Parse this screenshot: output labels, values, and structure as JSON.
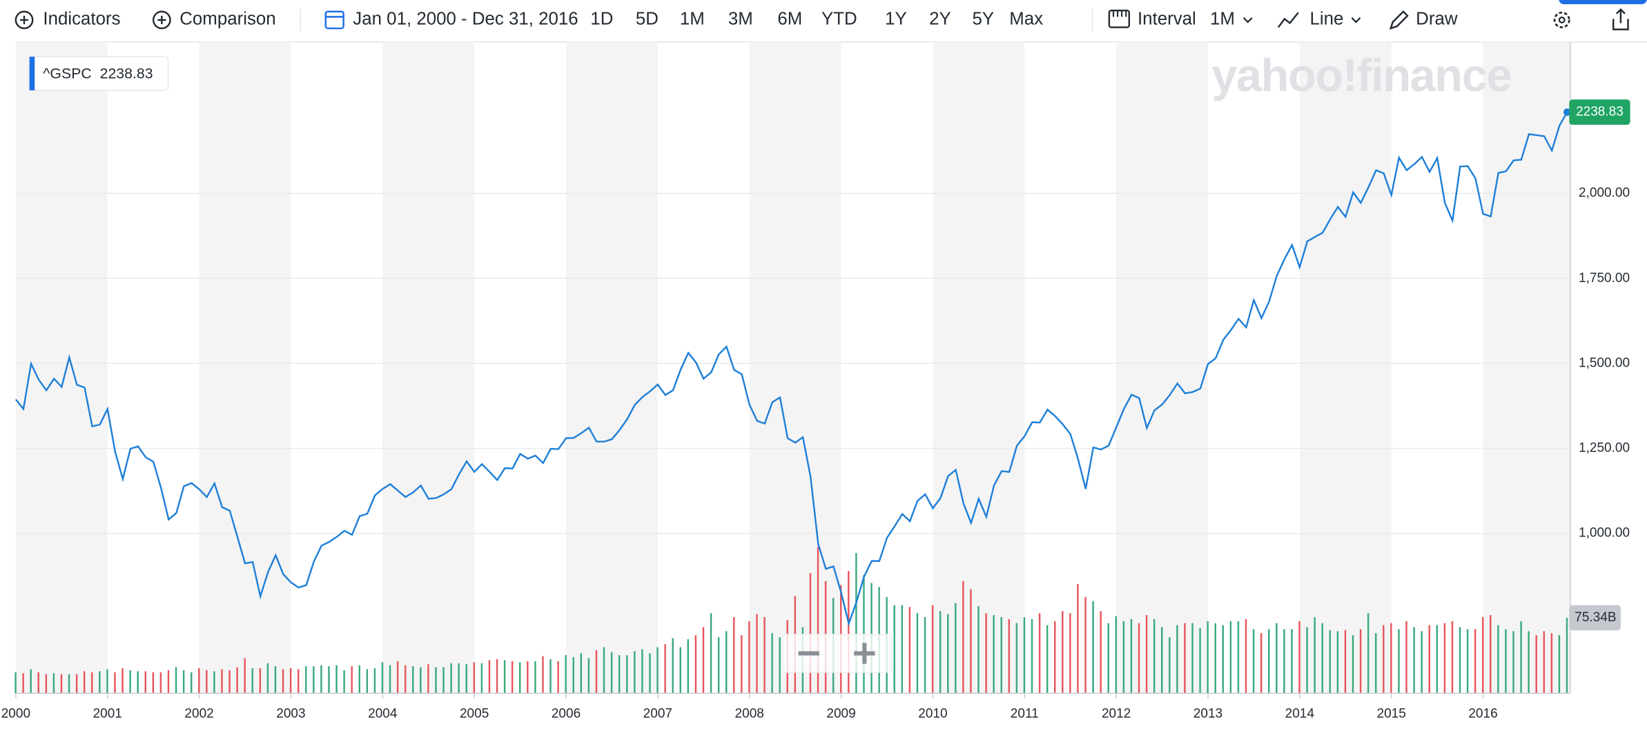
{
  "toolbar": {
    "indicators": "Indicators",
    "comparison": "Comparison",
    "date_range": "Jan 01, 2000 - Dec 31, 2016",
    "ranges": [
      "1D",
      "5D",
      "1M",
      "3M",
      "6M",
      "YTD",
      "1Y",
      "2Y",
      "5Y",
      "Max"
    ],
    "interval_label": "Interval",
    "interval": "1M",
    "chart_style": "Line",
    "draw": "Draw"
  },
  "watermark": "yahoo!finance",
  "chart_data": {
    "type": "line",
    "categories": [
      "2000",
      null,
      null,
      null,
      null,
      null,
      null,
      null,
      null,
      null,
      null,
      null,
      "2001",
      null,
      null,
      null,
      null,
      null,
      null,
      null,
      null,
      null,
      null,
      null,
      "2002",
      null,
      null,
      null,
      null,
      null,
      null,
      null,
      null,
      null,
      null,
      null,
      "2003",
      null,
      null,
      null,
      null,
      null,
      null,
      null,
      null,
      null,
      null,
      null,
      "2004",
      null,
      null,
      null,
      null,
      null,
      null,
      null,
      null,
      null,
      null,
      null,
      "2005",
      null,
      null,
      null,
      null,
      null,
      null,
      null,
      null,
      null,
      null,
      null,
      "2006",
      null,
      null,
      null,
      null,
      null,
      null,
      null,
      null,
      null,
      null,
      null,
      "2007",
      null,
      null,
      null,
      null,
      null,
      null,
      null,
      null,
      null,
      null,
      null,
      "2008",
      null,
      null,
      null,
      null,
      null,
      null,
      null,
      null,
      null,
      null,
      null,
      "2009",
      null,
      null,
      null,
      null,
      null,
      null,
      null,
      null,
      null,
      null,
      null,
      "2010",
      null,
      null,
      null,
      null,
      null,
      null,
      null,
      null,
      null,
      null,
      null,
      "2011",
      null,
      null,
      null,
      null,
      null,
      null,
      null,
      null,
      null,
      null,
      null,
      "2012",
      null,
      null,
      null,
      null,
      null,
      null,
      null,
      null,
      null,
      null,
      null,
      "2013",
      null,
      null,
      null,
      null,
      null,
      null,
      null,
      null,
      null,
      null,
      null,
      "2014",
      null,
      null,
      null,
      null,
      null,
      null,
      null,
      null,
      null,
      null,
      null,
      "2015",
      null,
      null,
      null,
      null,
      null,
      null,
      null,
      null,
      null,
      null,
      null,
      "2016",
      null,
      null,
      null,
      null,
      null,
      null,
      null,
      null,
      null,
      null,
      null
    ],
    "series": [
      {
        "name": "^GSPC",
        "color": "#1e7fd8",
        "values": [
          1394,
          1366,
          1499,
          1452,
          1421,
          1455,
          1431,
          1518,
          1437,
          1429,
          1315,
          1320,
          1366,
          1240,
          1160,
          1249,
          1256,
          1224,
          1211,
          1134,
          1041,
          1060,
          1139,
          1148,
          1130,
          1107,
          1147,
          1077,
          1067,
          990,
          912,
          916,
          815,
          886,
          936,
          880,
          856,
          841,
          848,
          917,
          964,
          975,
          990,
          1008,
          996,
          1051,
          1058,
          1112,
          1131,
          1145,
          1126,
          1107,
          1121,
          1141,
          1102,
          1104,
          1115,
          1130,
          1174,
          1212,
          1181,
          1204,
          1181,
          1157,
          1192,
          1191,
          1234,
          1220,
          1229,
          1207,
          1249,
          1248,
          1280,
          1281,
          1295,
          1311,
          1270,
          1270,
          1277,
          1304,
          1336,
          1378,
          1401,
          1418,
          1438,
          1407,
          1421,
          1482,
          1531,
          1503,
          1455,
          1474,
          1527,
          1549,
          1481,
          1468,
          1379,
          1331,
          1323,
          1386,
          1400,
          1280,
          1267,
          1283,
          1166,
          969,
          896,
          903,
          826,
          735,
          798,
          873,
          919,
          919,
          987,
          1021,
          1057,
          1036,
          1096,
          1115,
          1074,
          1104,
          1169,
          1187,
          1089,
          1031,
          1102,
          1049,
          1141,
          1183,
          1181,
          1258,
          1286,
          1327,
          1326,
          1364,
          1345,
          1321,
          1292,
          1219,
          1131,
          1253,
          1247,
          1258,
          1312,
          1366,
          1408,
          1398,
          1310,
          1362,
          1379,
          1407,
          1441,
          1412,
          1416,
          1426,
          1498,
          1515,
          1569,
          1598,
          1631,
          1606,
          1686,
          1633,
          1682,
          1757,
          1806,
          1848,
          1783,
          1859,
          1872,
          1884,
          1924,
          1960,
          1931,
          2003,
          1972,
          2018,
          2068,
          2059,
          1995,
          2105,
          2068,
          2086,
          2107,
          2063,
          2104,
          1972,
          1920,
          2079,
          2080,
          2044,
          1940,
          1932,
          2060,
          2065,
          2097,
          2099,
          2174,
          2171,
          2168,
          2126,
          2199,
          2238.83
        ]
      }
    ],
    "volume": {
      "up_color": "#3aa97b",
      "down_color": "#e8555e",
      "values": [
        21,
        20,
        24,
        21,
        19,
        20,
        19,
        19,
        19,
        22,
        21,
        22,
        24,
        21,
        25,
        23,
        22,
        22,
        21,
        21,
        23,
        26,
        23,
        21,
        25,
        23,
        22,
        24,
        23,
        26,
        35,
        25,
        25,
        30,
        27,
        24,
        25,
        24,
        27,
        27,
        28,
        27,
        28,
        23,
        27,
        28,
        24,
        25,
        31,
        28,
        32,
        28,
        27,
        26,
        29,
        26,
        26,
        30,
        30,
        29,
        31,
        30,
        33,
        34,
        33,
        32,
        31,
        32,
        32,
        37,
        34,
        32,
        38,
        36,
        40,
        35,
        43,
        46,
        41,
        38,
        38,
        42,
        44,
        40,
        46,
        49,
        55,
        46,
        54,
        58,
        66,
        80,
        56,
        62,
        76,
        58,
        72,
        79,
        76,
        60,
        56,
        73,
        97,
        66,
        120,
        146,
        112,
        95,
        108,
        122,
        140,
        118,
        110,
        106,
        96,
        88,
        88,
        86,
        80,
        76,
        88,
        82,
        79,
        90,
        112,
        104,
        87,
        80,
        78,
        76,
        74,
        70,
        76,
        74,
        80,
        68,
        72,
        82,
        80,
        109,
        96,
        92,
        82,
        70,
        77,
        72,
        74,
        70,
        78,
        74,
        66,
        56,
        68,
        70,
        70,
        65,
        72,
        70,
        68,
        72,
        72,
        74,
        64,
        60,
        64,
        70,
        64,
        64,
        72,
        66,
        76,
        70,
        63,
        62,
        63,
        58,
        64,
        80,
        60,
        68,
        70,
        64,
        72,
        66,
        62,
        68,
        68,
        70,
        72,
        66,
        64,
        64,
        76,
        78,
        68,
        64,
        62,
        72,
        62,
        58,
        62,
        60,
        58,
        75.34
      ],
      "value_labels": [
        null,
        null,
        null,
        null,
        null,
        null,
        null,
        null,
        null,
        null,
        null,
        null,
        null,
        null,
        null,
        null,
        null,
        null,
        null,
        null,
        null,
        null,
        null,
        null,
        null,
        null,
        null,
        null,
        null,
        null,
        null,
        null,
        null,
        null,
        null,
        null,
        null,
        null,
        null,
        null,
        null,
        null,
        null,
        null,
        null,
        null,
        null,
        null,
        null,
        null,
        null,
        null,
        null,
        null,
        null,
        null,
        null,
        null,
        null,
        null,
        null,
        null,
        null,
        null,
        null,
        null,
        null,
        null,
        null,
        null,
        null,
        null,
        null,
        null,
        null,
        null,
        null,
        null,
        null,
        null,
        null,
        null,
        null,
        null,
        null,
        null,
        null,
        null,
        null,
        null,
        null,
        null,
        null,
        null,
        null,
        null,
        null,
        null,
        null,
        null,
        null,
        null,
        null,
        null,
        null,
        null,
        null,
        null,
        null,
        null,
        null,
        null,
        null,
        null,
        null,
        null,
        null,
        null,
        null,
        null,
        null,
        null,
        null,
        null,
        null,
        null,
        null,
        null,
        null,
        null,
        null,
        null,
        null,
        null,
        null,
        null,
        null,
        null,
        null,
        null,
        null,
        null,
        null,
        null,
        null,
        null,
        null,
        null,
        null,
        null,
        null,
        null,
        null,
        null,
        null,
        null,
        null,
        null,
        null,
        null,
        null,
        null,
        null,
        null,
        null,
        null,
        null,
        null,
        null,
        null,
        null,
        null,
        null,
        null,
        null,
        null,
        null,
        null,
        null,
        null,
        null,
        null,
        null,
        null,
        null,
        null,
        null,
        null,
        null,
        null,
        null,
        null,
        null,
        null,
        null,
        null,
        null,
        null,
        null,
        null,
        null,
        null,
        null,
        "75.34B"
      ]
    },
    "ylim": [
      530,
      2445
    ],
    "yticks": [
      {
        "value": 1000,
        "label": "1,000.00"
      },
      {
        "value": 1250,
        "label": "1,250.00"
      },
      {
        "value": 1500,
        "label": "1,500.00"
      },
      {
        "value": 1750,
        "label": "1,750.00"
      },
      {
        "value": 2000,
        "label": "2,000.00"
      }
    ],
    "y2lim": [
      0,
      650
    ],
    "grid": true
  }
}
